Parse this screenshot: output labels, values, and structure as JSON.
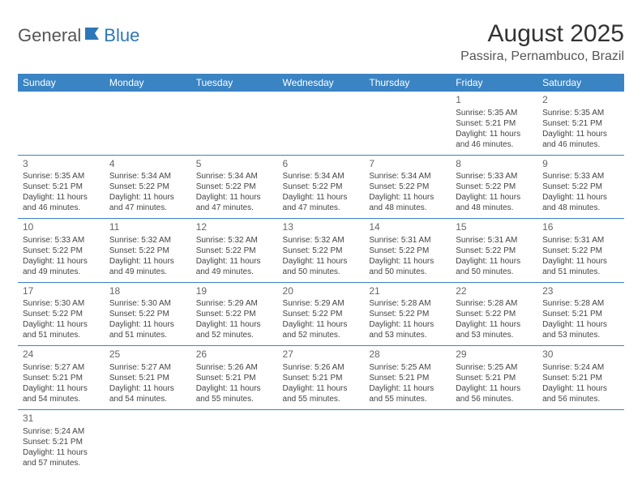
{
  "logo": {
    "general": "General",
    "blue": "Blue"
  },
  "title": "August 2025",
  "location": "Passira, Pernambuco, Brazil",
  "theme": {
    "header_bg": "#3a84c4",
    "header_fg": "#ffffff",
    "border": "#3a84c4",
    "text": "#444444",
    "daynum": "#666666"
  },
  "weekdays": [
    "Sunday",
    "Monday",
    "Tuesday",
    "Wednesday",
    "Thursday",
    "Friday",
    "Saturday"
  ],
  "weeks": [
    [
      null,
      null,
      null,
      null,
      null,
      {
        "n": "1",
        "sr": "Sunrise: 5:35 AM",
        "ss": "Sunset: 5:21 PM",
        "d1": "Daylight: 11 hours",
        "d2": "and 46 minutes."
      },
      {
        "n": "2",
        "sr": "Sunrise: 5:35 AM",
        "ss": "Sunset: 5:21 PM",
        "d1": "Daylight: 11 hours",
        "d2": "and 46 minutes."
      }
    ],
    [
      {
        "n": "3",
        "sr": "Sunrise: 5:35 AM",
        "ss": "Sunset: 5:21 PM",
        "d1": "Daylight: 11 hours",
        "d2": "and 46 minutes."
      },
      {
        "n": "4",
        "sr": "Sunrise: 5:34 AM",
        "ss": "Sunset: 5:22 PM",
        "d1": "Daylight: 11 hours",
        "d2": "and 47 minutes."
      },
      {
        "n": "5",
        "sr": "Sunrise: 5:34 AM",
        "ss": "Sunset: 5:22 PM",
        "d1": "Daylight: 11 hours",
        "d2": "and 47 minutes."
      },
      {
        "n": "6",
        "sr": "Sunrise: 5:34 AM",
        "ss": "Sunset: 5:22 PM",
        "d1": "Daylight: 11 hours",
        "d2": "and 47 minutes."
      },
      {
        "n": "7",
        "sr": "Sunrise: 5:34 AM",
        "ss": "Sunset: 5:22 PM",
        "d1": "Daylight: 11 hours",
        "d2": "and 48 minutes."
      },
      {
        "n": "8",
        "sr": "Sunrise: 5:33 AM",
        "ss": "Sunset: 5:22 PM",
        "d1": "Daylight: 11 hours",
        "d2": "and 48 minutes."
      },
      {
        "n": "9",
        "sr": "Sunrise: 5:33 AM",
        "ss": "Sunset: 5:22 PM",
        "d1": "Daylight: 11 hours",
        "d2": "and 48 minutes."
      }
    ],
    [
      {
        "n": "10",
        "sr": "Sunrise: 5:33 AM",
        "ss": "Sunset: 5:22 PM",
        "d1": "Daylight: 11 hours",
        "d2": "and 49 minutes."
      },
      {
        "n": "11",
        "sr": "Sunrise: 5:32 AM",
        "ss": "Sunset: 5:22 PM",
        "d1": "Daylight: 11 hours",
        "d2": "and 49 minutes."
      },
      {
        "n": "12",
        "sr": "Sunrise: 5:32 AM",
        "ss": "Sunset: 5:22 PM",
        "d1": "Daylight: 11 hours",
        "d2": "and 49 minutes."
      },
      {
        "n": "13",
        "sr": "Sunrise: 5:32 AM",
        "ss": "Sunset: 5:22 PM",
        "d1": "Daylight: 11 hours",
        "d2": "and 50 minutes."
      },
      {
        "n": "14",
        "sr": "Sunrise: 5:31 AM",
        "ss": "Sunset: 5:22 PM",
        "d1": "Daylight: 11 hours",
        "d2": "and 50 minutes."
      },
      {
        "n": "15",
        "sr": "Sunrise: 5:31 AM",
        "ss": "Sunset: 5:22 PM",
        "d1": "Daylight: 11 hours",
        "d2": "and 50 minutes."
      },
      {
        "n": "16",
        "sr": "Sunrise: 5:31 AM",
        "ss": "Sunset: 5:22 PM",
        "d1": "Daylight: 11 hours",
        "d2": "and 51 minutes."
      }
    ],
    [
      {
        "n": "17",
        "sr": "Sunrise: 5:30 AM",
        "ss": "Sunset: 5:22 PM",
        "d1": "Daylight: 11 hours",
        "d2": "and 51 minutes."
      },
      {
        "n": "18",
        "sr": "Sunrise: 5:30 AM",
        "ss": "Sunset: 5:22 PM",
        "d1": "Daylight: 11 hours",
        "d2": "and 51 minutes."
      },
      {
        "n": "19",
        "sr": "Sunrise: 5:29 AM",
        "ss": "Sunset: 5:22 PM",
        "d1": "Daylight: 11 hours",
        "d2": "and 52 minutes."
      },
      {
        "n": "20",
        "sr": "Sunrise: 5:29 AM",
        "ss": "Sunset: 5:22 PM",
        "d1": "Daylight: 11 hours",
        "d2": "and 52 minutes."
      },
      {
        "n": "21",
        "sr": "Sunrise: 5:28 AM",
        "ss": "Sunset: 5:22 PM",
        "d1": "Daylight: 11 hours",
        "d2": "and 53 minutes."
      },
      {
        "n": "22",
        "sr": "Sunrise: 5:28 AM",
        "ss": "Sunset: 5:22 PM",
        "d1": "Daylight: 11 hours",
        "d2": "and 53 minutes."
      },
      {
        "n": "23",
        "sr": "Sunrise: 5:28 AM",
        "ss": "Sunset: 5:21 PM",
        "d1": "Daylight: 11 hours",
        "d2": "and 53 minutes."
      }
    ],
    [
      {
        "n": "24",
        "sr": "Sunrise: 5:27 AM",
        "ss": "Sunset: 5:21 PM",
        "d1": "Daylight: 11 hours",
        "d2": "and 54 minutes."
      },
      {
        "n": "25",
        "sr": "Sunrise: 5:27 AM",
        "ss": "Sunset: 5:21 PM",
        "d1": "Daylight: 11 hours",
        "d2": "and 54 minutes."
      },
      {
        "n": "26",
        "sr": "Sunrise: 5:26 AM",
        "ss": "Sunset: 5:21 PM",
        "d1": "Daylight: 11 hours",
        "d2": "and 55 minutes."
      },
      {
        "n": "27",
        "sr": "Sunrise: 5:26 AM",
        "ss": "Sunset: 5:21 PM",
        "d1": "Daylight: 11 hours",
        "d2": "and 55 minutes."
      },
      {
        "n": "28",
        "sr": "Sunrise: 5:25 AM",
        "ss": "Sunset: 5:21 PM",
        "d1": "Daylight: 11 hours",
        "d2": "and 55 minutes."
      },
      {
        "n": "29",
        "sr": "Sunrise: 5:25 AM",
        "ss": "Sunset: 5:21 PM",
        "d1": "Daylight: 11 hours",
        "d2": "and 56 minutes."
      },
      {
        "n": "30",
        "sr": "Sunrise: 5:24 AM",
        "ss": "Sunset: 5:21 PM",
        "d1": "Daylight: 11 hours",
        "d2": "and 56 minutes."
      }
    ],
    [
      {
        "n": "31",
        "sr": "Sunrise: 5:24 AM",
        "ss": "Sunset: 5:21 PM",
        "d1": "Daylight: 11 hours",
        "d2": "and 57 minutes."
      },
      null,
      null,
      null,
      null,
      null,
      null
    ]
  ]
}
